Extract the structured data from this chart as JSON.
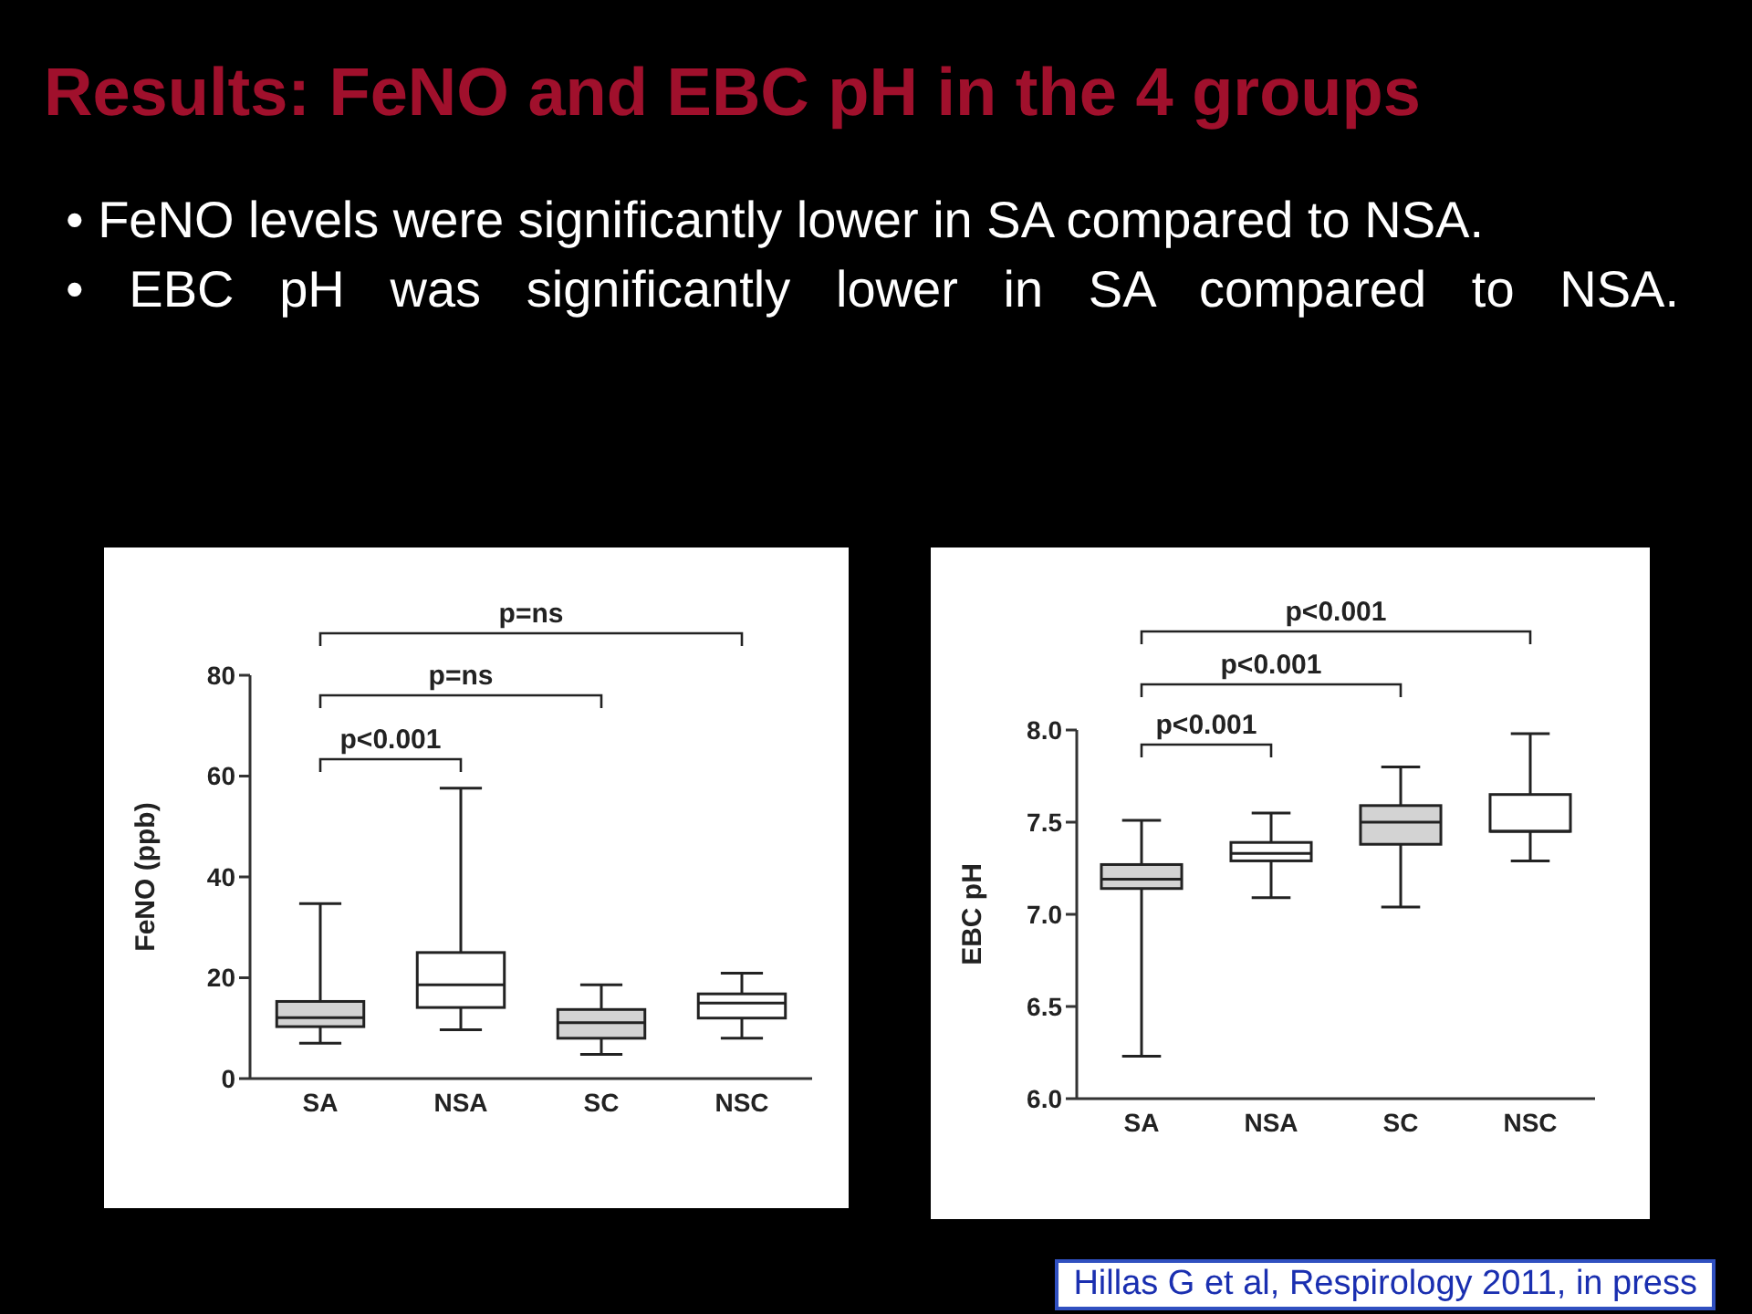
{
  "chart_data": [
    {
      "type": "box",
      "title": "Results: FeNO and EBC pH in the 4 groups",
      "subtitle": "• FeNO levels were significantly lower in SA compared to NSA.",
      "annotations": [
        "• EBC pH was significantly lower in SA compared to NSA.",
        "p<0.001",
        "p=ns",
        "p=ns"
      ],
      "categories": [
        "SA",
        "NSA",
        "SC",
        "NSC"
      ],
      "ylabel": "FeNO (ppb)",
      "ylim": [
        0,
        80
      ],
      "yticks": [
        0,
        20,
        40,
        60,
        80
      ],
      "boxes": [
        {
          "low": 7,
          "q1": 10.3,
          "median": 12.1,
          "q3": 15.3,
          "high": 34.7
        },
        {
          "low": 9.7,
          "q1": 14.1,
          "median": 18.6,
          "q3": 25,
          "high": 57.6
        },
        {
          "low": 4.8,
          "q1": 8,
          "median": 11.1,
          "q3": 13.7,
          "high": 18.6
        },
        {
          "low": 8,
          "q1": 12,
          "median": 15,
          "q3": 16.8,
          "high": 20.9
        }
      ],
      "colors": [
        "#d3d3d3",
        "#ffffff",
        "#d3d3d3",
        "#ffffff"
      ]
    },
    {
      "type": "box",
      "annotations": [
        "p<0.001",
        "p<0.001",
        "p<0.001",
        "Hillas G et al, Respirology 2011, in press"
      ],
      "categories": [
        "SA",
        "NSA",
        "SC",
        "NSC"
      ],
      "ylabel": "EBC pH",
      "ylim": [
        6,
        8
      ],
      "yticks": [
        {
          "value": 6,
          "label": "6.0"
        },
        {
          "value": 6.5,
          "label": "6.5"
        },
        {
          "value": 7,
          "label": "7.0"
        },
        {
          "value": 7.5,
          "label": "7.5"
        },
        {
          "value": 8,
          "label": "8.0"
        }
      ],
      "boxes": [
        {
          "low": 6.23,
          "q1": 7.14,
          "median": 7.19,
          "q3": 7.27,
          "high": 7.51
        },
        {
          "low": 7.09,
          "q1": 7.29,
          "median": 7.33,
          "q3": 7.39,
          "high": 7.55
        },
        {
          "low": 7.04,
          "q1": 7.38,
          "median": 7.5,
          "q3": 7.59,
          "high": 7.8
        },
        {
          "low": 7.29,
          "q1": 7.45,
          "median": 7.45,
          "q3": 7.65,
          "high": 7.98
        }
      ],
      "colors": [
        "#d3d3d3",
        "#ffffff",
        "#d3d3d3",
        "#ffffff"
      ]
    }
  ]
}
